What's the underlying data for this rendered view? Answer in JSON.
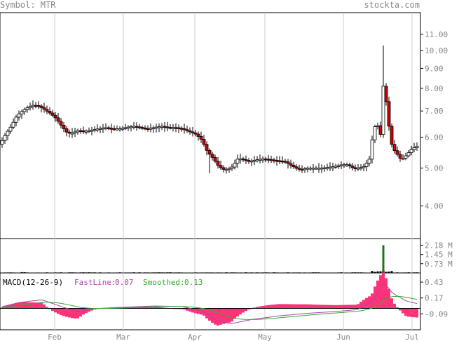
{
  "header": {
    "symbol_label": "Symbol: MTR",
    "site": "stockta.com"
  },
  "chart_data": {
    "type": "candlestick",
    "x_ticks": [
      "Feb",
      "Mar",
      "Apr",
      "May",
      "Jun",
      "Jul"
    ],
    "price_axis": {
      "scale": "log",
      "ticks": [
        "11.00",
        "10.00",
        "9.00",
        "8.00",
        "7.00",
        "6.00",
        "5.00",
        "4.00"
      ],
      "ylim": [
        3.3,
        12.5
      ]
    },
    "volume_axis": {
      "ticks": [
        "2.18 M",
        "1.45 M",
        "0.73 M"
      ],
      "ylim": [
        0,
        2.7
      ]
    },
    "macd": {
      "label": "MACD(12-26-9)",
      "fast_label": "FastLine:",
      "fast_value": "0.07",
      "smooth_label": "Smoothed:",
      "smooth_value": "0.13",
      "ticks": [
        "0.43",
        "0.17",
        "-0.09"
      ],
      "ylim": [
        -0.35,
        0.58
      ]
    },
    "colors": {
      "down": "#cc0000",
      "volume_spike": "#1a7a1a",
      "histogram": "#ff3377",
      "fast": "#aa44aa",
      "smoothed": "#33aa33"
    },
    "notes": "Price drifts 6.2–7.3 in Jan–Mar, dips to ~5.0 in April, spikes to ~10.3 in mid June with a volume spike of ~2.18M, ends near 5.7."
  }
}
